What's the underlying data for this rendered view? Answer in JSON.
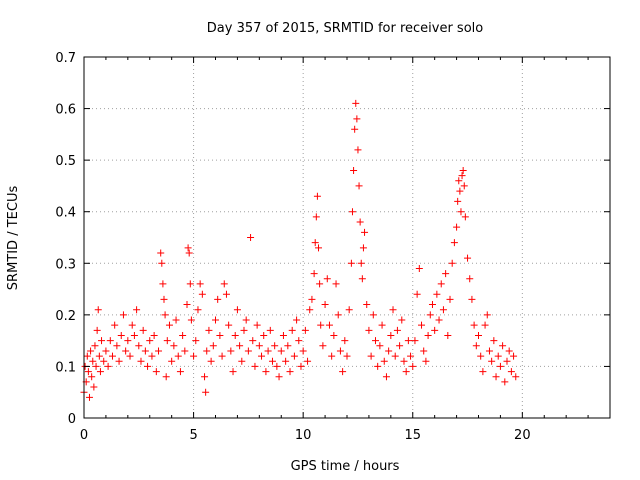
{
  "chart_data": {
    "type": "scatter",
    "title": "Day 357 of 2015, SRMTID for receiver solo",
    "xlabel": "GPS time / hours",
    "ylabel": "SRMTID / TECUs",
    "xlim": [
      0,
      24
    ],
    "ylim": [
      0,
      0.7
    ],
    "x_ticks": [
      0,
      5,
      10,
      15,
      20
    ],
    "x_tick_labels": [
      "0",
      "5",
      "10",
      "15",
      "20"
    ],
    "y_ticks": [
      0,
      0.1,
      0.2,
      0.3,
      0.4,
      0.5,
      0.6,
      0.7
    ],
    "y_tick_labels": [
      "0",
      "0.1",
      "0.2",
      "0.3",
      "0.4",
      "0.5",
      "0.6",
      "0.7"
    ],
    "grid": true,
    "marker": "+",
    "color": "#ff0000",
    "series": [
      {
        "name": "SRMTID",
        "points": [
          [
            0.0,
            0.05
          ],
          [
            0.05,
            0.1
          ],
          [
            0.1,
            0.07
          ],
          [
            0.15,
            0.12
          ],
          [
            0.2,
            0.09
          ],
          [
            0.25,
            0.04
          ],
          [
            0.3,
            0.13
          ],
          [
            0.35,
            0.08
          ],
          [
            0.4,
            0.11
          ],
          [
            0.45,
            0.06
          ],
          [
            0.5,
            0.14
          ],
          [
            0.55,
            0.1
          ],
          [
            0.6,
            0.17
          ],
          [
            0.65,
            0.21
          ],
          [
            0.7,
            0.12
          ],
          [
            0.75,
            0.09
          ],
          [
            0.8,
            0.15
          ],
          [
            0.9,
            0.11
          ],
          [
            1.0,
            0.13
          ],
          [
            1.1,
            0.1
          ],
          [
            1.2,
            0.15
          ],
          [
            1.3,
            0.12
          ],
          [
            1.4,
            0.18
          ],
          [
            1.5,
            0.14
          ],
          [
            1.6,
            0.11
          ],
          [
            1.7,
            0.16
          ],
          [
            1.8,
            0.2
          ],
          [
            1.9,
            0.13
          ],
          [
            2.0,
            0.15
          ],
          [
            2.1,
            0.12
          ],
          [
            2.2,
            0.18
          ],
          [
            2.3,
            0.16
          ],
          [
            2.4,
            0.21
          ],
          [
            2.5,
            0.14
          ],
          [
            2.6,
            0.11
          ],
          [
            2.7,
            0.17
          ],
          [
            2.8,
            0.13
          ],
          [
            2.9,
            0.1
          ],
          [
            3.0,
            0.15
          ],
          [
            3.1,
            0.12
          ],
          [
            3.2,
            0.16
          ],
          [
            3.3,
            0.09
          ],
          [
            3.4,
            0.13
          ],
          [
            3.5,
            0.32
          ],
          [
            3.55,
            0.3
          ],
          [
            3.6,
            0.26
          ],
          [
            3.65,
            0.23
          ],
          [
            3.7,
            0.2
          ],
          [
            3.75,
            0.08
          ],
          [
            3.8,
            0.15
          ],
          [
            3.9,
            0.18
          ],
          [
            4.0,
            0.11
          ],
          [
            4.1,
            0.14
          ],
          [
            4.2,
            0.19
          ],
          [
            4.3,
            0.12
          ],
          [
            4.4,
            0.09
          ],
          [
            4.5,
            0.16
          ],
          [
            4.6,
            0.13
          ],
          [
            4.7,
            0.22
          ],
          [
            4.75,
            0.33
          ],
          [
            4.8,
            0.32
          ],
          [
            4.85,
            0.26
          ],
          [
            4.9,
            0.19
          ],
          [
            5.0,
            0.12
          ],
          [
            5.1,
            0.15
          ],
          [
            5.2,
            0.21
          ],
          [
            5.3,
            0.26
          ],
          [
            5.4,
            0.24
          ],
          [
            5.5,
            0.08
          ],
          [
            5.55,
            0.05
          ],
          [
            5.6,
            0.13
          ],
          [
            5.7,
            0.17
          ],
          [
            5.8,
            0.11
          ],
          [
            5.9,
            0.14
          ],
          [
            6.0,
            0.19
          ],
          [
            6.1,
            0.23
          ],
          [
            6.2,
            0.16
          ],
          [
            6.3,
            0.12
          ],
          [
            6.4,
            0.26
          ],
          [
            6.5,
            0.24
          ],
          [
            6.6,
            0.18
          ],
          [
            6.7,
            0.13
          ],
          [
            6.8,
            0.09
          ],
          [
            6.9,
            0.16
          ],
          [
            7.0,
            0.21
          ],
          [
            7.1,
            0.14
          ],
          [
            7.2,
            0.11
          ],
          [
            7.3,
            0.17
          ],
          [
            7.4,
            0.19
          ],
          [
            7.5,
            0.13
          ],
          [
            7.6,
            0.35
          ],
          [
            7.7,
            0.15
          ],
          [
            7.8,
            0.1
          ],
          [
            7.9,
            0.18
          ],
          [
            8.0,
            0.14
          ],
          [
            8.1,
            0.12
          ],
          [
            8.2,
            0.16
          ],
          [
            8.3,
            0.09
          ],
          [
            8.4,
            0.13
          ],
          [
            8.5,
            0.17
          ],
          [
            8.6,
            0.11
          ],
          [
            8.7,
            0.14
          ],
          [
            8.8,
            0.1
          ],
          [
            8.9,
            0.08
          ],
          [
            9.0,
            0.13
          ],
          [
            9.1,
            0.16
          ],
          [
            9.2,
            0.11
          ],
          [
            9.3,
            0.14
          ],
          [
            9.4,
            0.09
          ],
          [
            9.5,
            0.17
          ],
          [
            9.6,
            0.12
          ],
          [
            9.7,
            0.19
          ],
          [
            9.8,
            0.15
          ],
          [
            9.9,
            0.1
          ],
          [
            10.0,
            0.13
          ],
          [
            10.1,
            0.17
          ],
          [
            10.2,
            0.11
          ],
          [
            10.3,
            0.21
          ],
          [
            10.4,
            0.23
          ],
          [
            10.5,
            0.28
          ],
          [
            10.55,
            0.34
          ],
          [
            10.6,
            0.39
          ],
          [
            10.65,
            0.43
          ],
          [
            10.7,
            0.33
          ],
          [
            10.75,
            0.26
          ],
          [
            10.8,
            0.18
          ],
          [
            10.9,
            0.14
          ],
          [
            11.0,
            0.22
          ],
          [
            11.1,
            0.27
          ],
          [
            11.2,
            0.18
          ],
          [
            11.3,
            0.12
          ],
          [
            11.4,
            0.16
          ],
          [
            11.5,
            0.26
          ],
          [
            11.6,
            0.2
          ],
          [
            11.7,
            0.13
          ],
          [
            11.8,
            0.09
          ],
          [
            11.9,
            0.15
          ],
          [
            12.0,
            0.12
          ],
          [
            12.1,
            0.21
          ],
          [
            12.2,
            0.3
          ],
          [
            12.25,
            0.4
          ],
          [
            12.3,
            0.48
          ],
          [
            12.35,
            0.56
          ],
          [
            12.4,
            0.61
          ],
          [
            12.45,
            0.58
          ],
          [
            12.5,
            0.52
          ],
          [
            12.55,
            0.45
          ],
          [
            12.6,
            0.38
          ],
          [
            12.65,
            0.3
          ],
          [
            12.7,
            0.27
          ],
          [
            12.75,
            0.33
          ],
          [
            12.8,
            0.36
          ],
          [
            12.9,
            0.22
          ],
          [
            13.0,
            0.17
          ],
          [
            13.1,
            0.12
          ],
          [
            13.2,
            0.2
          ],
          [
            13.3,
            0.15
          ],
          [
            13.4,
            0.1
          ],
          [
            13.5,
            0.14
          ],
          [
            13.6,
            0.18
          ],
          [
            13.7,
            0.11
          ],
          [
            13.8,
            0.08
          ],
          [
            13.9,
            0.13
          ],
          [
            14.0,
            0.16
          ],
          [
            14.1,
            0.21
          ],
          [
            14.2,
            0.12
          ],
          [
            14.3,
            0.17
          ],
          [
            14.4,
            0.14
          ],
          [
            14.5,
            0.19
          ],
          [
            14.6,
            0.11
          ],
          [
            14.7,
            0.09
          ],
          [
            14.8,
            0.15
          ],
          [
            14.9,
            0.12
          ],
          [
            15.0,
            0.1
          ],
          [
            15.1,
            0.15
          ],
          [
            15.2,
            0.24
          ],
          [
            15.3,
            0.29
          ],
          [
            15.4,
            0.18
          ],
          [
            15.5,
            0.13
          ],
          [
            15.6,
            0.11
          ],
          [
            15.7,
            0.16
          ],
          [
            15.8,
            0.2
          ],
          [
            15.9,
            0.22
          ],
          [
            16.0,
            0.17
          ],
          [
            16.1,
            0.24
          ],
          [
            16.2,
            0.19
          ],
          [
            16.3,
            0.26
          ],
          [
            16.4,
            0.21
          ],
          [
            16.5,
            0.28
          ],
          [
            16.6,
            0.16
          ],
          [
            16.7,
            0.23
          ],
          [
            16.8,
            0.3
          ],
          [
            16.9,
            0.34
          ],
          [
            17.0,
            0.37
          ],
          [
            17.05,
            0.42
          ],
          [
            17.1,
            0.46
          ],
          [
            17.15,
            0.44
          ],
          [
            17.2,
            0.4
          ],
          [
            17.25,
            0.47
          ],
          [
            17.3,
            0.48
          ],
          [
            17.35,
            0.45
          ],
          [
            17.4,
            0.39
          ],
          [
            17.5,
            0.31
          ],
          [
            17.6,
            0.27
          ],
          [
            17.7,
            0.23
          ],
          [
            17.8,
            0.18
          ],
          [
            17.9,
            0.14
          ],
          [
            18.0,
            0.16
          ],
          [
            18.1,
            0.12
          ],
          [
            18.2,
            0.09
          ],
          [
            18.3,
            0.18
          ],
          [
            18.4,
            0.2
          ],
          [
            18.5,
            0.13
          ],
          [
            18.6,
            0.11
          ],
          [
            18.7,
            0.15
          ],
          [
            18.8,
            0.08
          ],
          [
            18.9,
            0.12
          ],
          [
            19.0,
            0.1
          ],
          [
            19.1,
            0.14
          ],
          [
            19.2,
            0.07
          ],
          [
            19.3,
            0.11
          ],
          [
            19.4,
            0.13
          ],
          [
            19.5,
            0.09
          ],
          [
            19.6,
            0.12
          ],
          [
            19.7,
            0.08
          ]
        ]
      }
    ]
  }
}
